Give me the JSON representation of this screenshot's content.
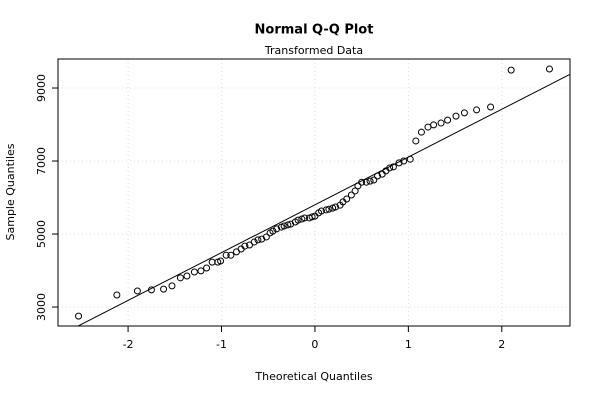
{
  "chart_data": {
    "type": "scatter",
    "title": "Normal Q-Q Plot",
    "subtitle": "Transformed Data",
    "x_label": "Theoretical Quantiles",
    "y_label": "Sample Quantiles",
    "xlim": [
      -2.75,
      2.73
    ],
    "ylim": [
      2480,
      9795
    ],
    "xticks": [
      -2,
      -1,
      0,
      1,
      2
    ],
    "yticks": [
      3000,
      5000,
      7000,
      9000
    ],
    "grid": true,
    "color": "#000000",
    "line": {
      "intercept": 5800,
      "slope": 1310
    },
    "x": [
      -2.53,
      -2.12,
      -1.9,
      -1.75,
      -1.62,
      -1.53,
      -1.44,
      -1.37,
      -1.29,
      -1.22,
      -1.16,
      -1.1,
      -1.04,
      -1.01,
      -0.95,
      -0.9,
      -0.84,
      -0.79,
      -0.75,
      -0.7,
      -0.65,
      -0.61,
      -0.57,
      -0.52,
      -0.48,
      -0.45,
      -0.41,
      -0.36,
      -0.33,
      -0.29,
      -0.26,
      -0.21,
      -0.18,
      -0.14,
      -0.11,
      -0.06,
      -0.03,
      0,
      0.04,
      0.07,
      0.12,
      0.15,
      0.19,
      0.22,
      0.27,
      0.3,
      0.34,
      0.39,
      0.43,
      0.46,
      0.5,
      0.55,
      0.59,
      0.63,
      0.67,
      0.72,
      0.76,
      0.8,
      0.84,
      0.9,
      0.95,
      1.02,
      1.08,
      1.14,
      1.21,
      1.27,
      1.35,
      1.42,
      1.51,
      1.6,
      1.73,
      1.88,
      2.1,
      2.51
    ],
    "values": [
      2750,
      3330,
      3440,
      3470,
      3490,
      3580,
      3800,
      3850,
      3960,
      3990,
      4070,
      4230,
      4230,
      4260,
      4420,
      4420,
      4510,
      4590,
      4670,
      4700,
      4780,
      4840,
      4860,
      4920,
      5030,
      5080,
      5140,
      5190,
      5220,
      5250,
      5270,
      5330,
      5380,
      5410,
      5440,
      5440,
      5470,
      5490,
      5580,
      5630,
      5660,
      5680,
      5710,
      5740,
      5790,
      5880,
      5960,
      6070,
      6180,
      6320,
      6420,
      6420,
      6450,
      6480,
      6590,
      6640,
      6730,
      6810,
      6840,
      6950,
      7000,
      7050,
      7550,
      7790,
      7930,
      7990,
      8040,
      8120,
      8230,
      8320,
      8400,
      8480,
      9490,
      9520
    ]
  }
}
